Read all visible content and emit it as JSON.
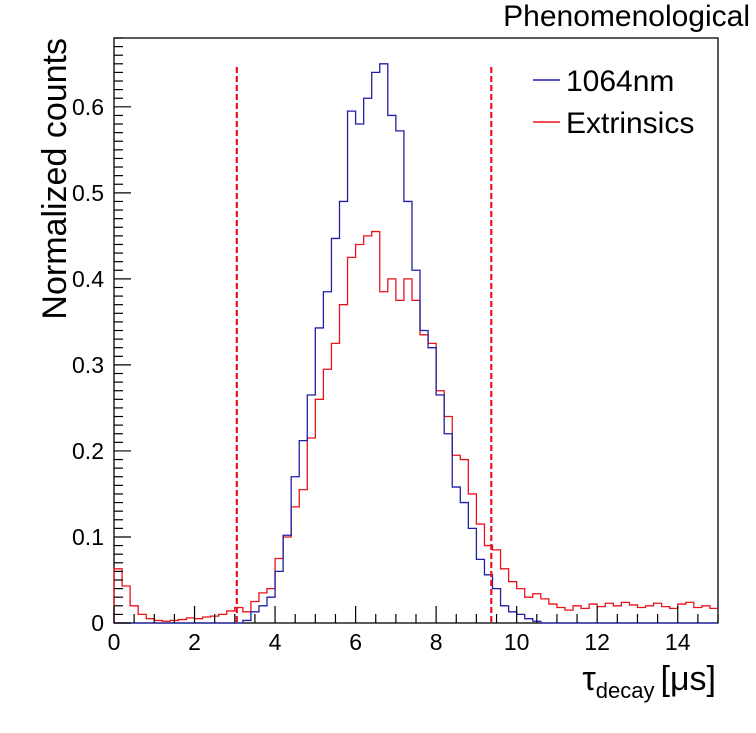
{
  "chart_data": {
    "type": "histogram",
    "title": "Phenomenological",
    "xlabel": {
      "symbol": "τ",
      "subscript": "decay",
      "units": "[μs]"
    },
    "ylabel": "Normalized counts",
    "xlim": [
      0,
      15
    ],
    "ylim": [
      0,
      0.68
    ],
    "bin_width": 0.2,
    "x_ticks": [
      0,
      2,
      4,
      6,
      8,
      10,
      12,
      14
    ],
    "x_tick_labels": [
      "0",
      "2",
      "4",
      "6",
      "8",
      "10",
      "12",
      "14"
    ],
    "y_ticks": [
      0,
      0.1,
      0.2,
      0.3,
      0.4,
      0.5,
      0.6
    ],
    "y_tick_labels": [
      "0",
      "0.1",
      "0.2",
      "0.3",
      "0.4",
      "0.5",
      "0.6"
    ],
    "cut_lines": [
      3.05,
      9.37
    ],
    "series": [
      {
        "name": "1064nm",
        "color": "#1f1fa8",
        "values": [
          0,
          0,
          0,
          0,
          0,
          0,
          0,
          0,
          0,
          0,
          0,
          0,
          0,
          0,
          0,
          0,
          0.003,
          0.013,
          0.02,
          0.03,
          0.06,
          0.102,
          0.17,
          0.212,
          0.265,
          0.343,
          0.385,
          0.447,
          0.49,
          0.595,
          0.58,
          0.61,
          0.64,
          0.65,
          0.59,
          0.572,
          0.49,
          0.41,
          0.34,
          0.32,
          0.265,
          0.22,
          0.158,
          0.14,
          0.11,
          0.074,
          0.056,
          0.04,
          0.02,
          0.013,
          0.01,
          0.005,
          0.002,
          0,
          0,
          0,
          0,
          0,
          0,
          0,
          0,
          0,
          0,
          0,
          0,
          0,
          0,
          0,
          0,
          0,
          0,
          0,
          0,
          0,
          0
        ]
      },
      {
        "name": "Extrinsics",
        "color": "#e8131b",
        "values": [
          0.063,
          0.043,
          0.02,
          0.01,
          0.005,
          0.003,
          0.002,
          0.003,
          0.004,
          0.006,
          0.005,
          0.007,
          0.008,
          0.01,
          0.014,
          0.018,
          0.013,
          0.025,
          0.035,
          0.04,
          0.075,
          0.1,
          0.135,
          0.155,
          0.215,
          0.26,
          0.295,
          0.325,
          0.37,
          0.425,
          0.44,
          0.45,
          0.455,
          0.385,
          0.4,
          0.375,
          0.4,
          0.375,
          0.335,
          0.325,
          0.27,
          0.24,
          0.195,
          0.19,
          0.15,
          0.115,
          0.09,
          0.085,
          0.063,
          0.048,
          0.04,
          0.03,
          0.034,
          0.028,
          0.022,
          0.018,
          0.015,
          0.02,
          0.017,
          0.022,
          0.019,
          0.023,
          0.02,
          0.024,
          0.021,
          0.018,
          0.02,
          0.023,
          0.019,
          0.017,
          0.022,
          0.024,
          0.018,
          0.02,
          0.017
        ]
      }
    ]
  }
}
